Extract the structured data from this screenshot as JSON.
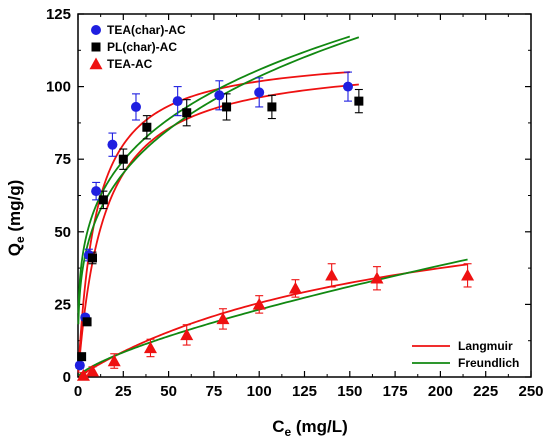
{
  "chart_data": {
    "type": "scatter",
    "x_axis": {
      "label_main": "C",
      "label_sub": "e",
      "label_rest": " (mg/L)",
      "range": [
        0,
        250
      ],
      "ticks": [
        0,
        25,
        50,
        75,
        100,
        125,
        150,
        175,
        200,
        225,
        250
      ]
    },
    "y_axis": {
      "label_main": "Q",
      "label_sub": "e",
      "label_rest": " (mg/g)",
      "range": [
        0,
        125
      ],
      "ticks": [
        0,
        25,
        50,
        75,
        100,
        125
      ]
    },
    "grid": false,
    "series": [
      {
        "name": "TEA(char)-AC",
        "marker": "circle",
        "color": "#1f1fe0",
        "points": [
          {
            "x": 1,
            "y": 4,
            "err": 1
          },
          {
            "x": 4,
            "y": 20.5,
            "err": 1
          },
          {
            "x": 6,
            "y": 42,
            "err": 2
          },
          {
            "x": 10,
            "y": 64,
            "err": 3
          },
          {
            "x": 19,
            "y": 80,
            "err": 4
          },
          {
            "x": 32,
            "y": 93,
            "err": 4.5
          },
          {
            "x": 55,
            "y": 95,
            "err": 5
          },
          {
            "x": 78,
            "y": 97,
            "err": 5
          },
          {
            "x": 100,
            "y": 98,
            "err": 5
          },
          {
            "x": 149,
            "y": 100,
            "err": 5
          }
        ]
      },
      {
        "name": "PL(char)-AC",
        "marker": "square",
        "color": "#000000",
        "points": [
          {
            "x": 2,
            "y": 7,
            "err": 1
          },
          {
            "x": 5,
            "y": 19,
            "err": 1
          },
          {
            "x": 8,
            "y": 41,
            "err": 2
          },
          {
            "x": 14,
            "y": 61,
            "err": 3
          },
          {
            "x": 25,
            "y": 75,
            "err": 3.5
          },
          {
            "x": 38,
            "y": 86,
            "err": 4
          },
          {
            "x": 60,
            "y": 91,
            "err": 4.5
          },
          {
            "x": 82,
            "y": 93,
            "err": 4.5
          },
          {
            "x": 107,
            "y": 93,
            "err": 4
          },
          {
            "x": 155,
            "y": 95,
            "err": 4
          }
        ]
      },
      {
        "name": "TEA-AC",
        "marker": "triangle",
        "color": "#ee1111",
        "points": [
          {
            "x": 3,
            "y": 0.5,
            "err": 1
          },
          {
            "x": 8,
            "y": 2,
            "err": 1.5
          },
          {
            "x": 20,
            "y": 5.5,
            "err": 2.5
          },
          {
            "x": 40,
            "y": 10,
            "err": 3
          },
          {
            "x": 60,
            "y": 14.5,
            "err": 3.5
          },
          {
            "x": 80,
            "y": 20,
            "err": 3.5
          },
          {
            "x": 100,
            "y": 25,
            "err": 3
          },
          {
            "x": 120,
            "y": 30.5,
            "err": 3
          },
          {
            "x": 140,
            "y": 35,
            "err": 4
          },
          {
            "x": 165,
            "y": 34,
            "err": 4
          },
          {
            "x": 215,
            "y": 35,
            "err": 4
          }
        ]
      }
    ],
    "fits": [
      {
        "legend": "Langmuir",
        "model": "langmuir",
        "qmax": 112,
        "KL": 0.1,
        "x_range": [
          0.2,
          150
        ],
        "color": "#ee1111"
      },
      {
        "legend": "Freundlich",
        "model": "freundlich",
        "KF": 33,
        "inv_n": 0.253,
        "x_range": [
          0.2,
          150
        ],
        "color": "#118811"
      },
      {
        "model": "langmuir",
        "qmax": 110,
        "KL": 0.07,
        "x_range": [
          0.2,
          155
        ],
        "color": "#ee1111"
      },
      {
        "model": "freundlich",
        "KF": 28.5,
        "inv_n": 0.28,
        "x_range": [
          0.2,
          155
        ],
        "color": "#118811"
      },
      {
        "model": "langmuir",
        "qmax": 71,
        "KL": 0.0056,
        "x_range": [
          0.5,
          215
        ],
        "color": "#ee1111"
      },
      {
        "model": "freundlich",
        "KF": 0.82,
        "inv_n": 0.726,
        "x_range": [
          0.5,
          215
        ],
        "color": "#118811"
      }
    ],
    "legends": {
      "markers_position": "top-left",
      "fits_position": "bottom-right"
    }
  }
}
